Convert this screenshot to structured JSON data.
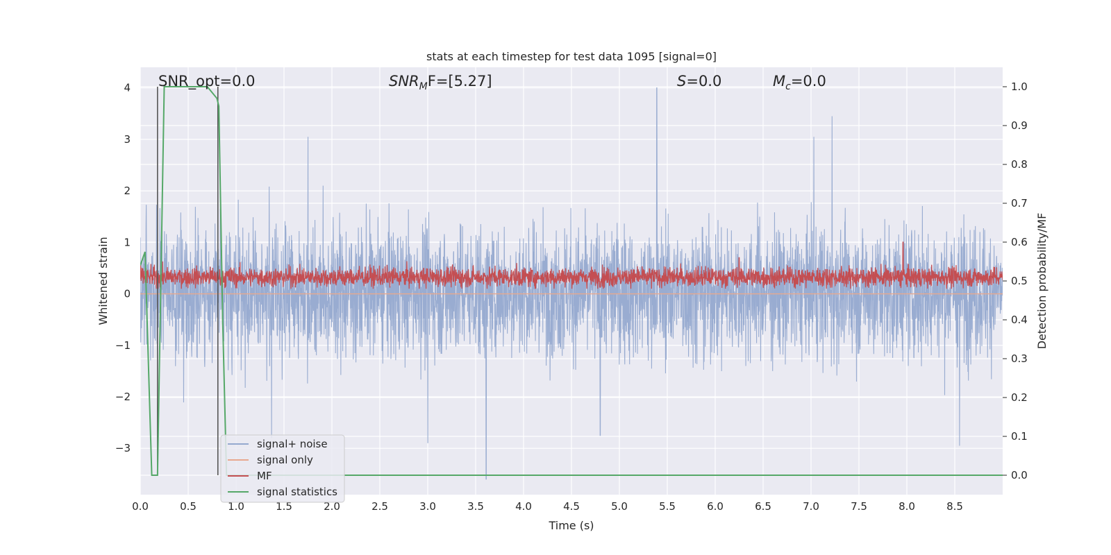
{
  "chart_data": {
    "type": "line",
    "title": "stats at each timestep for test data 1095 [signal=0]",
    "xlabel": "Time (s)",
    "ylabel": "Whitened strain",
    "y2label": "Detection probability/MF",
    "xlim": [
      0.0,
      9.0
    ],
    "ylim": [
      -3.9,
      4.4
    ],
    "y2lim": [
      -0.05,
      1.05
    ],
    "xticks": [
      "0.0",
      "0.5",
      "1.0",
      "1.5",
      "2.0",
      "2.5",
      "3.0",
      "3.5",
      "4.0",
      "4.5",
      "5.0",
      "5.5",
      "6.0",
      "6.5",
      "7.0",
      "7.5",
      "8.0",
      "8.5"
    ],
    "xtick_values": [
      0.0,
      0.5,
      1.0,
      1.5,
      2.0,
      2.5,
      3.0,
      3.5,
      4.0,
      4.5,
      5.0,
      5.5,
      6.0,
      6.5,
      7.0,
      7.5,
      8.0,
      8.5
    ],
    "yticks": [
      "4",
      "3",
      "2",
      "1",
      "0",
      "−1",
      "−2",
      "−3"
    ],
    "ytick_values": [
      4,
      3,
      2,
      1,
      0,
      -1,
      -2,
      -3
    ],
    "y2ticks": [
      "1.0",
      "0.9",
      "0.8",
      "0.7",
      "0.6",
      "0.5",
      "0.4",
      "0.3",
      "0.2",
      "0.1",
      "0.0"
    ],
    "y2tick_values": [
      1.0,
      0.9,
      0.8,
      0.7,
      0.6,
      0.5,
      0.4,
      0.3,
      0.2,
      0.1,
      0.0
    ],
    "grid": true,
    "legend_position": "lower-left",
    "annotations": {
      "snr_opt": "SNR_opt=0.0",
      "snr_mf_base": "SNR",
      "snr_mf_sub": "M",
      "snr_mf_rest": "F=[5.27]",
      "s_label": "S",
      "s_value": "=0.0",
      "mc_base": "M",
      "mc_sub": "c",
      "mc_value": "=0.0"
    },
    "series": [
      {
        "name": "signal+ noise",
        "color": "#95a9cf",
        "kind": "noise",
        "typical_min": -1.3,
        "typical_max": 1.5,
        "peak_max": 4.0,
        "peak_min": -3.6,
        "peaks": [
          [
            5.39,
            4.0
          ],
          [
            7.22,
            3.45
          ],
          [
            7.03,
            3.05
          ],
          [
            1.75,
            3.05
          ],
          [
            3.61,
            -3.6
          ],
          [
            1.37,
            -2.8
          ],
          [
            3.0,
            -2.9
          ],
          [
            4.8,
            -2.75
          ],
          [
            8.55,
            -2.95
          ]
        ]
      },
      {
        "name": "signal only",
        "color": "#e8a88f",
        "kind": "flat",
        "value": 0.0
      },
      {
        "name": "MF",
        "color": "#c44e52",
        "kind": "mf",
        "axis": "right",
        "baseline": 0.51,
        "typical_max": 0.56,
        "typical_min": 0.48,
        "peaks": [
          [
            7.96,
            0.6
          ],
          [
            6.25,
            0.56
          ]
        ]
      },
      {
        "name": "signal statistics",
        "color": "#55a868",
        "kind": "line",
        "axis": "right",
        "x": [
          0.0,
          0.05,
          0.12,
          0.18,
          0.25,
          0.3,
          0.5,
          0.6,
          0.7,
          0.8,
          0.82,
          0.86,
          0.9,
          1.0,
          2.0,
          3.0,
          4.0,
          5.0,
          6.0,
          7.0,
          8.0,
          8.5,
          8.6,
          9.0
        ],
        "y": [
          0.54,
          0.575,
          0.0,
          0.0,
          1.0,
          1.0,
          1.0,
          1.0,
          1.0,
          0.97,
          0.95,
          0.4,
          0.0,
          0.0,
          0.0,
          0.0,
          0.0,
          0.0,
          0.0,
          0.0,
          0.0,
          0.0,
          0.0,
          0.0
        ]
      }
    ],
    "vlines": [
      {
        "x": 0.18,
        "color": "#555555"
      },
      {
        "x": 0.81,
        "color": "#555555"
      }
    ]
  }
}
